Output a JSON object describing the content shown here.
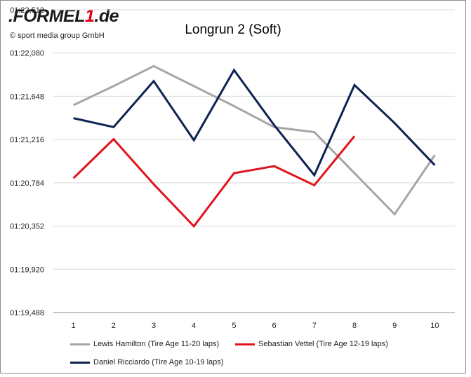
{
  "brand": {
    "prefix": ".FORMEL",
    "highlight": "1",
    "suffix": ".de",
    "color": "#e2001a"
  },
  "copyright": "© sport media group GmbH",
  "chart_data": {
    "type": "line",
    "title": "Longrun 2 (Soft)",
    "xlabel": "",
    "ylabel": "",
    "x": [
      1,
      2,
      3,
      4,
      5,
      6,
      7,
      8,
      9,
      10
    ],
    "y_seconds_range": [
      79.488,
      82.512
    ],
    "y_tick_labels": [
      "01:19,488",
      "01:19,920",
      "01:20,352",
      "01:20,784",
      "01:21,216",
      "01:21,648",
      "01:22,080",
      "01:22,512"
    ],
    "grid": "horizontal",
    "legend_position": "bottom",
    "series": [
      {
        "name": "Lewis Hamilton (Tire Age 11-20 laps)",
        "color": "#a6a6a6",
        "values": [
          81.56,
          81.75,
          81.95,
          81.75,
          81.55,
          81.34,
          81.29,
          80.88,
          80.47,
          81.06
        ]
      },
      {
        "name": "Sebastian Vettel (Tire Age 12-19 laps)",
        "color": "#e0141e",
        "values": [
          80.83,
          81.22,
          80.77,
          80.35,
          80.88,
          80.95,
          80.76,
          81.25,
          null,
          null
        ]
      },
      {
        "name": "Daniel Ricciardo (Tire Age 10-19 laps)",
        "color": "#0d2350",
        "values": [
          81.43,
          81.34,
          81.8,
          81.21,
          81.91,
          81.36,
          80.86,
          81.76,
          81.38,
          80.96
        ]
      }
    ]
  }
}
